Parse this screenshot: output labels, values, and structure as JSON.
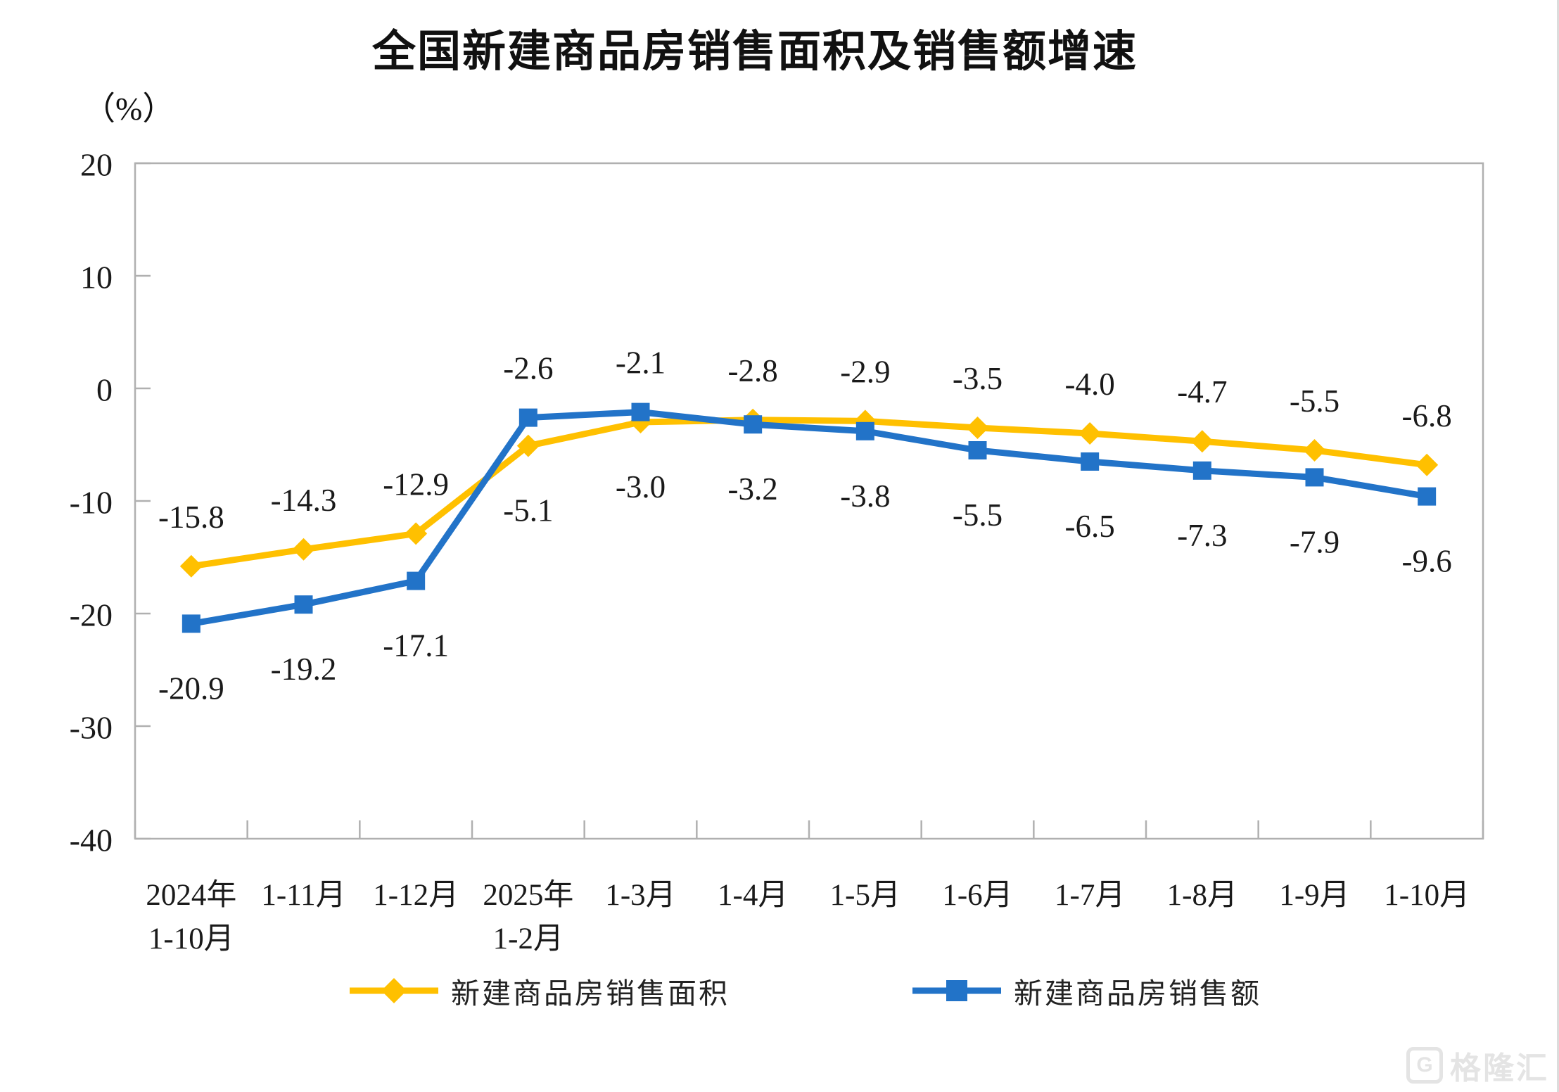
{
  "chart_data": {
    "type": "line",
    "title": "全国新建商品房销售面积及销售额增速",
    "unit_label": "（%）",
    "categories": [
      "2024年\n1-10月",
      "1-11月",
      "1-12月",
      "2025年\n1-2月",
      "1-3月",
      "1-4月",
      "1-5月",
      "1-6月",
      "1-7月",
      "1-8月",
      "1-9月",
      "1-10月"
    ],
    "series": [
      {
        "name": "新建商品房销售面积",
        "marker": "diamond",
        "color": "#FFC000",
        "values": [
          -15.8,
          -14.3,
          -12.9,
          -5.1,
          -3.0,
          -2.8,
          -2.9,
          -3.5,
          -4.0,
          -4.7,
          -5.5,
          -6.8
        ]
      },
      {
        "name": "新建商品房销售额",
        "marker": "square",
        "color": "#2273C8",
        "values": [
          -20.9,
          -19.2,
          -17.1,
          -2.6,
          -2.1,
          -3.2,
          -3.8,
          -5.5,
          -6.5,
          -7.3,
          -7.9,
          -9.6
        ]
      }
    ],
    "ylim": [
      -40,
      20
    ],
    "y_ticks": [
      20,
      10,
      0,
      -10,
      -20,
      -30,
      -40
    ],
    "grid": false,
    "data_labels": true,
    "legend_position": "bottom"
  },
  "watermark": {
    "logo_letter": "G",
    "text": "格隆汇"
  }
}
